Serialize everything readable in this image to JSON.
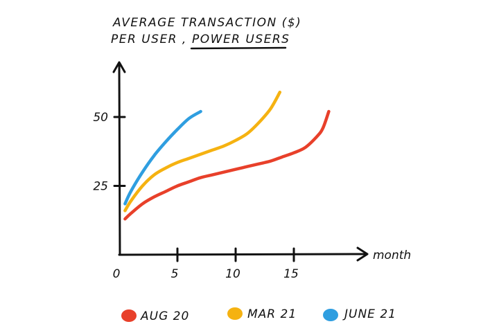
{
  "chart_data": {
    "type": "line",
    "title_line1": "AVERAGE TRANSACTION ($)",
    "title_line2_prefix": "PER USER ,",
    "title_line2_emph": "POWER USERS",
    "xlabel": "month",
    "ylabel": "",
    "xlim": [
      0,
      21
    ],
    "ylim": [
      0,
      68
    ],
    "x_ticks": [
      "0",
      "5",
      "10",
      "15"
    ],
    "x_tick_values": [
      0,
      5,
      10,
      15
    ],
    "y_ticks": [
      "25",
      "50"
    ],
    "y_tick_values": [
      25,
      50
    ],
    "grid": false,
    "legend_position": "bottom",
    "series": [
      {
        "name": "AUG 20",
        "color": "#e8402a",
        "x": [
          0.5,
          1,
          2,
          3,
          4,
          5,
          6,
          7,
          8,
          9,
          10,
          11,
          12,
          13,
          14,
          15,
          16,
          17,
          17.5,
          18
        ],
        "y": [
          13,
          15,
          18.5,
          21,
          23,
          25,
          26.5,
          28,
          29,
          30,
          31,
          32,
          33,
          34,
          35.5,
          37,
          39,
          43,
          46,
          52
        ]
      },
      {
        "name": "MAR 21",
        "color": "#f5b211",
        "x": [
          0.5,
          1,
          2,
          3,
          4,
          5,
          6,
          7,
          8,
          9,
          10,
          11,
          12,
          13,
          13.8
        ],
        "y": [
          16,
          19.5,
          25,
          29,
          31.5,
          33.5,
          35,
          36.5,
          38,
          39.5,
          41.5,
          44,
          48,
          53,
          59
        ]
      },
      {
        "name": "JUNE 21",
        "color": "#2f9ee0",
        "x": [
          0.5,
          1,
          2,
          3,
          4,
          5,
          6,
          7
        ],
        "y": [
          18.5,
          23,
          30,
          36,
          41,
          45.5,
          49.5,
          52
        ]
      }
    ]
  }
}
